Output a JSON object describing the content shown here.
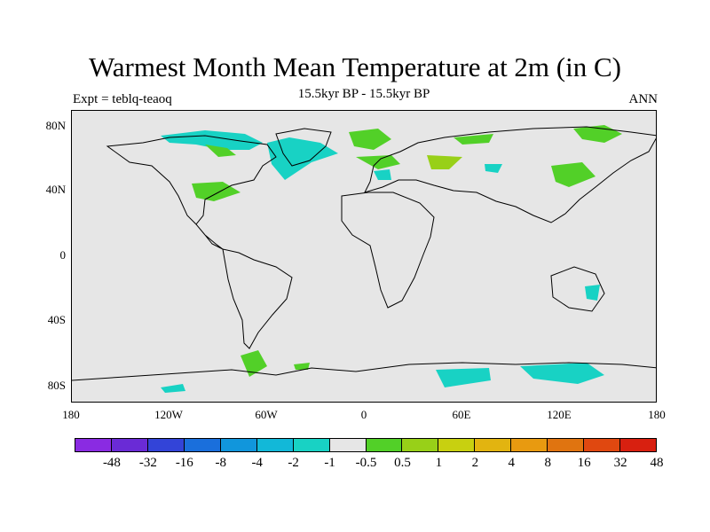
{
  "title": "Warmest Month Mean Temperature at 2m (in C)",
  "subtitle": "15.5kyr BP - 15.5kyr BP",
  "left_label": "Expt = teblq-teaoq",
  "right_label": "ANN",
  "lat_ticks": [
    "80N",
    "40N",
    "0",
    "40S",
    "80S"
  ],
  "lon_ticks": [
    "180",
    "120W",
    "60W",
    "0",
    "60E",
    "120E",
    "180"
  ],
  "colorbar": {
    "colors": [
      "#8a2be2",
      "#6a2bd6",
      "#3344d8",
      "#1a6fdc",
      "#1196dc",
      "#12b8d8",
      "#18d2c4",
      "#e6e6e6",
      "#52d028",
      "#98d018",
      "#c8d010",
      "#e2b410",
      "#e89a10",
      "#e07410",
      "#e04810",
      "#d82010"
    ],
    "labels": [
      "-48",
      "-32",
      "-16",
      "-8",
      "-4",
      "-2",
      "-1",
      "-0.5",
      "0.5",
      "1",
      "2",
      "4",
      "8",
      "16",
      "32",
      "48"
    ]
  }
}
